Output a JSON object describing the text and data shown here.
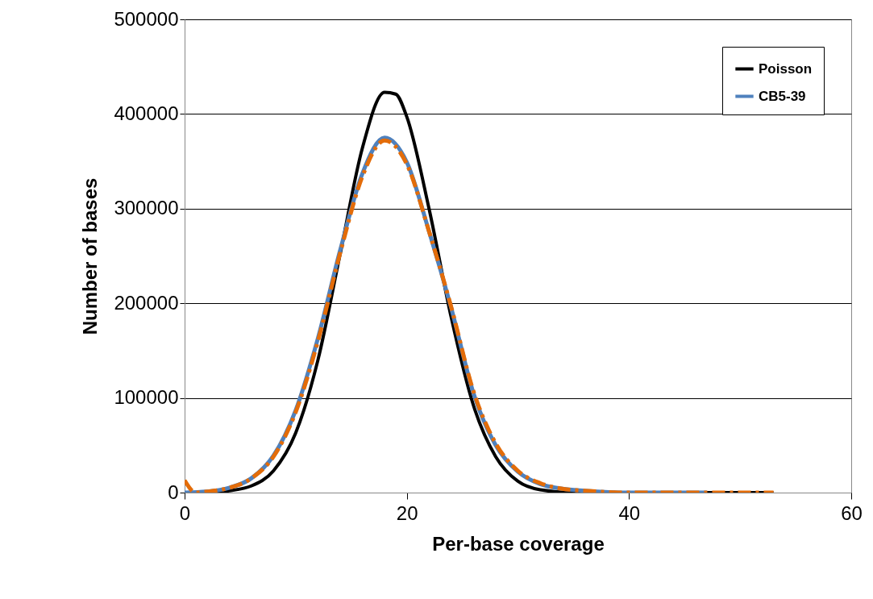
{
  "chart_data": {
    "type": "line",
    "xlabel": "Per-base coverage",
    "ylabel": "Number of bases",
    "xlim": [
      0,
      60
    ],
    "xticks": [
      0,
      20,
      40,
      60
    ],
    "ylim": [
      0,
      500000
    ],
    "yticks": [
      0,
      100000,
      200000,
      300000,
      400000,
      500000
    ],
    "grid": "y",
    "legend": "top right",
    "series": [
      {
        "name": "Poisson",
        "color": "#000000",
        "line_style": "solid",
        "x": [
          0,
          2,
          4,
          6,
          8,
          10,
          12,
          14,
          16,
          18,
          19,
          20,
          22,
          24,
          26,
          28,
          30,
          32,
          35,
          40,
          45,
          50,
          53
        ],
        "values": [
          0,
          0,
          2000,
          7000,
          23000,
          63000,
          140000,
          252000,
          364000,
          423000,
          421000,
          397000,
          300000,
          185000,
          92000,
          38000,
          12000,
          3000,
          0,
          0,
          0,
          0,
          0
        ]
      },
      {
        "name": "CB5-39",
        "color": "#4f81bd",
        "line_style": "solid",
        "x": [
          0,
          2,
          4,
          6,
          8,
          10,
          12,
          14,
          16,
          18,
          20,
          22,
          24,
          26,
          28,
          30,
          32,
          34,
          36,
          40,
          47
        ],
        "values": [
          0,
          1000,
          5000,
          15000,
          39000,
          87000,
          163000,
          256000,
          337000,
          375000,
          349000,
          276000,
          195000,
          105000,
          50000,
          22000,
          9000,
          4000,
          2000,
          0,
          0
        ]
      },
      {
        "color": "#e36c09",
        "line_style": "dashed",
        "x": [
          0,
          1,
          2,
          4,
          6,
          8,
          10,
          12,
          14,
          16,
          18,
          20,
          22,
          24,
          26,
          28,
          30,
          32,
          34,
          36,
          40,
          47,
          53
        ],
        "values": [
          13000,
          0,
          1000,
          5000,
          15000,
          38000,
          85000,
          160000,
          253000,
          334000,
          372000,
          347000,
          276000,
          196000,
          107000,
          52000,
          23000,
          10000,
          4000,
          2000,
          0,
          0,
          0
        ]
      }
    ]
  }
}
